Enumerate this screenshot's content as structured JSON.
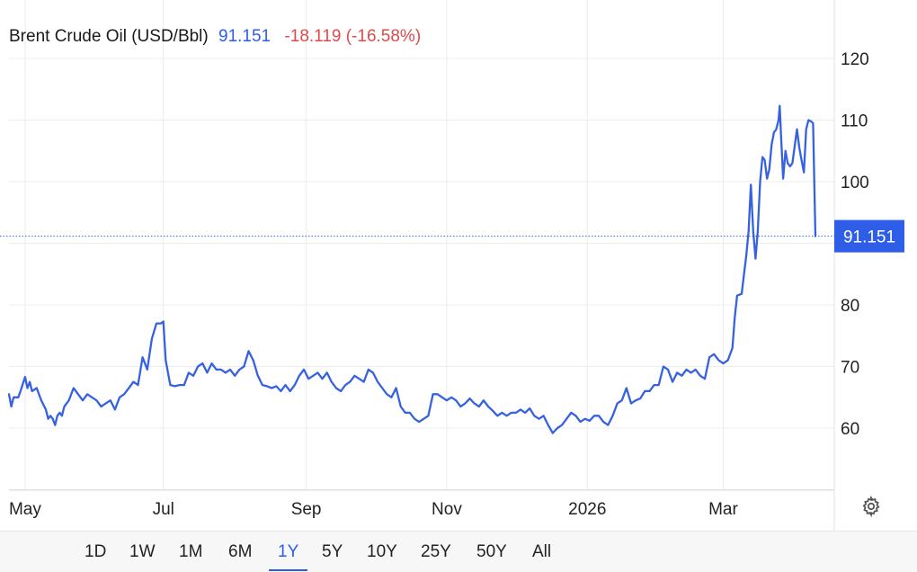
{
  "header": {
    "name": "Brent Crude Oil (USD/Bbl)",
    "last": "91.151",
    "change": "-18.119 (-16.58%)"
  },
  "range_buttons": [
    "1D",
    "1W",
    "1M",
    "6M",
    "1Y",
    "5Y",
    "10Y",
    "25Y",
    "50Y",
    "All"
  ],
  "active_range": "1Y",
  "colors": {
    "line": "#3661e0",
    "accent": "#2e5ee8",
    "negative": "#e04a4a"
  },
  "chart_data": {
    "type": "line",
    "title": "Brent Crude Oil (USD/Bbl)",
    "xlabel": "",
    "ylabel": "",
    "ylim": [
      45,
      125
    ],
    "y_ticks": [
      60,
      70,
      80,
      100,
      110,
      120
    ],
    "x_ticks": [
      {
        "label": "May",
        "t": 7
      },
      {
        "label": "Jul",
        "t": 67
      },
      {
        "label": "Sep",
        "t": 129
      },
      {
        "label": "Nov",
        "t": 190
      },
      {
        "label": "2026",
        "t": 251
      },
      {
        "label": "Mar",
        "t": 310
      }
    ],
    "current_value": 91.151,
    "current_label": "91.151",
    "grid": true,
    "series": [
      {
        "values": [
          [
            0,
            65.5
          ],
          [
            1,
            63.5
          ],
          [
            2,
            65
          ],
          [
            4,
            65
          ],
          [
            5,
            66
          ],
          [
            7,
            68.3
          ],
          [
            8,
            66.5
          ],
          [
            9,
            67.5
          ],
          [
            10,
            66
          ],
          [
            12,
            66.5
          ],
          [
            14,
            64.5
          ],
          [
            16,
            63
          ],
          [
            17,
            61.5
          ],
          [
            18,
            62
          ],
          [
            19,
            61.5
          ],
          [
            20,
            60.5
          ],
          [
            21,
            62
          ],
          [
            22,
            62.5
          ],
          [
            23,
            62
          ],
          [
            24,
            63.5
          ],
          [
            26,
            64.5
          ],
          [
            28,
            66.5
          ],
          [
            30,
            65.5
          ],
          [
            32,
            64.5
          ],
          [
            34,
            65.5
          ],
          [
            36,
            65
          ],
          [
            38,
            64.5
          ],
          [
            40,
            63.5
          ],
          [
            42,
            64
          ],
          [
            44,
            64.5
          ],
          [
            46,
            63
          ],
          [
            48,
            65
          ],
          [
            50,
            65.5
          ],
          [
            52,
            66.5
          ],
          [
            54,
            67.5
          ],
          [
            56,
            67
          ],
          [
            58,
            71.5
          ],
          [
            60,
            69.5
          ],
          [
            62,
            74.5
          ],
          [
            64,
            77
          ],
          [
            66,
            77
          ],
          [
            67,
            77.3
          ],
          [
            68,
            71
          ],
          [
            70,
            67
          ],
          [
            72,
            66.8
          ],
          [
            74,
            67
          ],
          [
            76,
            67
          ],
          [
            78,
            69
          ],
          [
            80,
            68.5
          ],
          [
            82,
            70
          ],
          [
            84,
            70.5
          ],
          [
            86,
            69
          ],
          [
            88,
            70.5
          ],
          [
            90,
            69.5
          ],
          [
            92,
            69.5
          ],
          [
            94,
            69
          ],
          [
            96,
            69.5
          ],
          [
            98,
            68.5
          ],
          [
            100,
            69.5
          ],
          [
            102,
            70
          ],
          [
            104,
            72.5
          ],
          [
            106,
            71
          ],
          [
            108,
            68.5
          ],
          [
            110,
            67
          ],
          [
            112,
            66.8
          ],
          [
            114,
            66.5
          ],
          [
            116,
            66.8
          ],
          [
            118,
            66
          ],
          [
            120,
            67
          ],
          [
            122,
            66
          ],
          [
            124,
            67
          ],
          [
            126,
            68.5
          ],
          [
            128,
            69.5
          ],
          [
            130,
            68
          ],
          [
            132,
            68.5
          ],
          [
            134,
            69
          ],
          [
            136,
            68
          ],
          [
            138,
            69
          ],
          [
            140,
            67.5
          ],
          [
            142,
            66.5
          ],
          [
            144,
            66
          ],
          [
            146,
            67
          ],
          [
            148,
            67.5
          ],
          [
            150,
            68.5
          ],
          [
            152,
            68
          ],
          [
            154,
            67.5
          ],
          [
            156,
            69.5
          ],
          [
            158,
            69
          ],
          [
            160,
            67.5
          ],
          [
            162,
            66.5
          ],
          [
            164,
            65.5
          ],
          [
            166,
            65
          ],
          [
            168,
            66.5
          ],
          [
            170,
            63.5
          ],
          [
            172,
            62.5
          ],
          [
            174,
            62.5
          ],
          [
            176,
            61.5
          ],
          [
            178,
            61
          ],
          [
            180,
            61.5
          ],
          [
            182,
            62
          ],
          [
            184,
            65.5
          ],
          [
            186,
            65.5
          ],
          [
            188,
            65
          ],
          [
            190,
            64.5
          ],
          [
            192,
            65
          ],
          [
            194,
            64.5
          ],
          [
            196,
            63.5
          ],
          [
            198,
            64
          ],
          [
            200,
            64.8
          ],
          [
            202,
            64
          ],
          [
            204,
            63.5
          ],
          [
            206,
            64.5
          ],
          [
            208,
            63.5
          ],
          [
            210,
            62.8
          ],
          [
            212,
            62
          ],
          [
            214,
            62.5
          ],
          [
            216,
            62
          ],
          [
            218,
            62.5
          ],
          [
            220,
            62.5
          ],
          [
            222,
            63
          ],
          [
            224,
            62.5
          ],
          [
            226,
            63.2
          ],
          [
            228,
            62
          ],
          [
            230,
            61.5
          ],
          [
            232,
            62
          ],
          [
            234,
            60.5
          ],
          [
            236,
            59.2
          ],
          [
            238,
            60
          ],
          [
            240,
            60.5
          ],
          [
            242,
            61.5
          ],
          [
            244,
            62.5
          ],
          [
            246,
            62
          ],
          [
            248,
            61
          ],
          [
            250,
            61.5
          ],
          [
            252,
            61.2
          ],
          [
            254,
            62
          ],
          [
            256,
            62
          ],
          [
            258,
            61
          ],
          [
            260,
            60.5
          ],
          [
            262,
            62
          ],
          [
            264,
            64
          ],
          [
            266,
            64.5
          ],
          [
            268,
            66.5
          ],
          [
            270,
            64
          ],
          [
            272,
            64.5
          ],
          [
            274,
            64.8
          ],
          [
            276,
            66
          ],
          [
            278,
            66
          ],
          [
            280,
            67
          ],
          [
            282,
            67
          ],
          [
            284,
            70
          ],
          [
            286,
            69.5
          ],
          [
            288,
            67.5
          ],
          [
            290,
            69
          ],
          [
            292,
            68.5
          ],
          [
            294,
            69.5
          ],
          [
            296,
            69
          ],
          [
            298,
            69.5
          ],
          [
            300,
            68.5
          ],
          [
            302,
            68
          ],
          [
            304,
            71.5
          ],
          [
            306,
            72
          ],
          [
            308,
            71
          ],
          [
            310,
            70.5
          ],
          [
            312,
            71
          ],
          [
            314,
            73
          ],
          [
            315,
            78
          ],
          [
            316,
            81.5
          ],
          [
            318,
            81.8
          ],
          [
            319,
            85
          ],
          [
            320,
            88
          ],
          [
            321,
            92
          ],
          [
            322,
            99.5
          ],
          [
            323,
            92
          ],
          [
            324,
            87.5
          ],
          [
            325,
            92
          ],
          [
            326,
            100
          ],
          [
            327,
            104
          ],
          [
            328,
            103.5
          ],
          [
            329,
            100.5
          ],
          [
            330,
            102
          ],
          [
            331,
            106
          ],
          [
            332,
            108
          ],
          [
            333,
            108.5
          ],
          [
            334,
            110
          ],
          [
            334.5,
            112.3
          ],
          [
            335,
            108
          ],
          [
            336,
            100.5
          ],
          [
            337,
            105
          ],
          [
            338,
            103
          ],
          [
            339,
            102.5
          ],
          [
            340,
            103
          ],
          [
            342,
            108.5
          ],
          [
            343,
            105.5
          ],
          [
            344,
            103.5
          ],
          [
            345,
            101.5
          ],
          [
            346,
            108.5
          ],
          [
            347,
            110
          ],
          [
            348,
            109.8
          ],
          [
            349,
            109.5
          ],
          [
            350,
            91.151
          ]
        ]
      }
    ]
  }
}
